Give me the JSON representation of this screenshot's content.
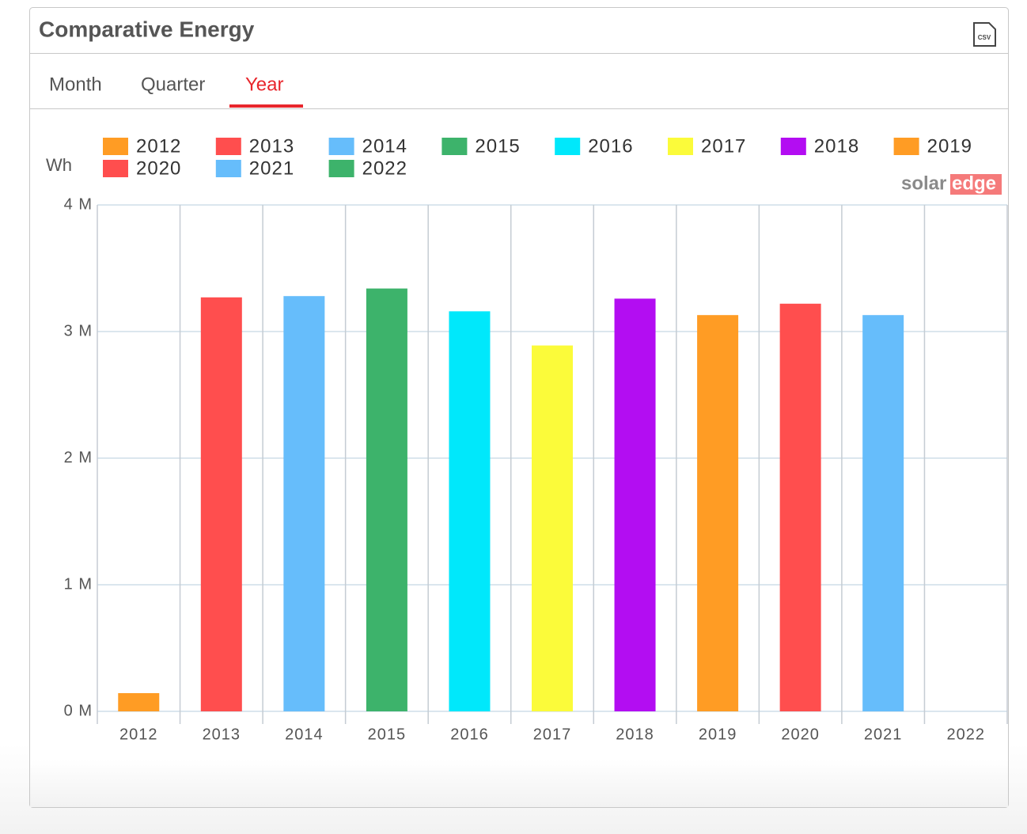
{
  "header": {
    "title": "Comparative Energy",
    "csv_icon": "CSV"
  },
  "tabs": {
    "items": [
      "Month",
      "Quarter",
      "Year"
    ],
    "active": 2
  },
  "logo": {
    "part1": "solar",
    "part2": "edge"
  },
  "chart_data": {
    "type": "bar",
    "y_label": "Wh",
    "categories": [
      "2012",
      "2013",
      "2014",
      "2015",
      "2016",
      "2017",
      "2018",
      "2019",
      "2020",
      "2021",
      "2022"
    ],
    "values": [
      144000,
      3270000,
      3280000,
      3340000,
      3160000,
      2890000,
      3260000,
      3130000,
      3220000,
      3130000,
      0
    ],
    "colors": [
      "#ff9c24",
      "#ff4e4e",
      "#66bdfb",
      "#3db36b",
      "#00e8fb",
      "#fbfb3a",
      "#b30df2",
      "#ff9c24",
      "#ff4e4e",
      "#66bdfb",
      "#3db36b"
    ],
    "ylim": [
      0,
      4000000
    ],
    "yticks": [
      {
        "value": 0,
        "label": "0 M"
      },
      {
        "value": 1000000,
        "label": "1 M"
      },
      {
        "value": 2000000,
        "label": "2 M"
      },
      {
        "value": 3000000,
        "label": "3 M"
      },
      {
        "value": 4000000,
        "label": "4 M"
      }
    ],
    "grid": true
  }
}
